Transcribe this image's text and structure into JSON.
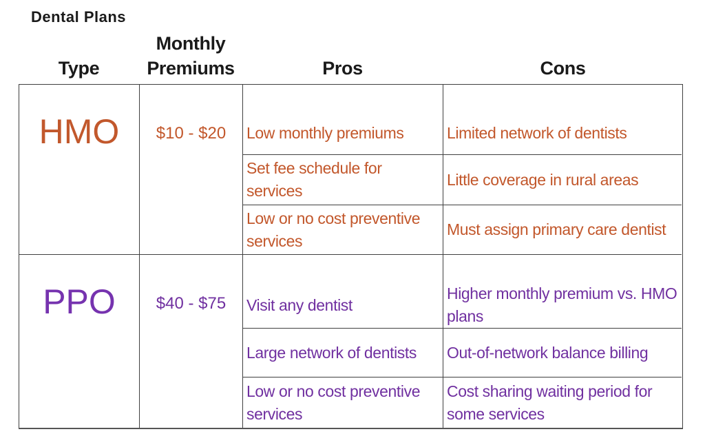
{
  "title": "Dental Plans",
  "colors": {
    "hmo_heading": "#C2582C",
    "hmo_text": "#C2572B",
    "ppo_heading": "#7633AF",
    "ppo_text": "#7030A0",
    "border": "#3F3F3F",
    "header_text": "#1A1A1A"
  },
  "headers": {
    "type": "Type",
    "premiums": "Monthly Premiums",
    "pros": "Pros",
    "cons": "Cons"
  },
  "plans": [
    {
      "type": "HMO",
      "premium": "$10 - $20",
      "rows": [
        {
          "pro": "Low monthly premiums",
          "con": "Limited network of dentists"
        },
        {
          "pro": "Set fee schedule for\nservices",
          "con": "Little coverage in rural areas"
        },
        {
          "pro": "Low or no cost preventive\nservices",
          "con": "Must assign primary care dentist"
        }
      ]
    },
    {
      "type": "PPO",
      "premium": "$40 - $75",
      "rows": [
        {
          "pro": "Visit any dentist",
          "con": "Higher monthly premium vs. HMO\nplans"
        },
        {
          "pro": "Large network of dentists",
          "con": "Out-of-network balance billing"
        },
        {
          "pro": "Low or no cost preventive\nservices",
          "con": "Cost sharing waiting period for\nsome services"
        }
      ]
    }
  ]
}
